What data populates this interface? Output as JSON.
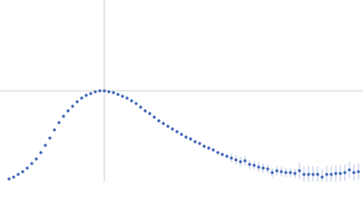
{
  "chart_data": {
    "type": "scatter",
    "xlim": [
      0,
      400
    ],
    "ylim": [
      0,
      200
    ],
    "xticks": [
      115
    ],
    "yticks": [
      100
    ],
    "grid": true,
    "x": [
      10,
      15,
      20,
      25,
      30,
      35,
      40,
      45,
      50,
      55,
      60,
      65,
      70,
      75,
      80,
      85,
      90,
      95,
      100,
      105,
      110,
      115,
      120,
      125,
      130,
      135,
      140,
      145,
      150,
      155,
      160,
      165,
      170,
      175,
      180,
      185,
      190,
      195,
      200,
      205,
      210,
      215,
      220,
      225,
      230,
      235,
      240,
      245,
      250,
      255,
      260,
      265,
      270,
      275,
      280,
      285,
      290,
      295,
      300,
      305,
      310,
      315,
      320,
      325,
      330,
      335,
      340,
      345,
      350,
      355,
      360,
      365,
      370,
      375,
      380,
      385,
      390,
      395
    ],
    "series": [
      {
        "color": "#3a62b5",
        "values": [
          3,
          5,
          8,
          11,
          15,
          20,
          25,
          32,
          40,
          48,
          57,
          65,
          72,
          78,
          83,
          88,
          92,
          95,
          97,
          99,
          100,
          100,
          99,
          98,
          96,
          94,
          92,
          89,
          86,
          82,
          78,
          75,
          71,
          67,
          64,
          61,
          58,
          55,
          52,
          49,
          47,
          44,
          42,
          39,
          37,
          35,
          32,
          30,
          28,
          26,
          24,
          22,
          23,
          19,
          18,
          16,
          15,
          14,
          10,
          12,
          11,
          10,
          10,
          9,
          12,
          8,
          8,
          8,
          8,
          5,
          8,
          8,
          9,
          9,
          10,
          13,
          10,
          11
        ],
        "errors": [
          1,
          1,
          1,
          1,
          1,
          1,
          1,
          1,
          1,
          1,
          1,
          1,
          1,
          1,
          1,
          1,
          1,
          1,
          1,
          1,
          1,
          1,
          1,
          1,
          1,
          1,
          1,
          1,
          1,
          2,
          2,
          2,
          2,
          2,
          2,
          2,
          2,
          2,
          2,
          2,
          2,
          2,
          2,
          2,
          2,
          2,
          2,
          2,
          2,
          5,
          5,
          5,
          5,
          5,
          5,
          5,
          5,
          5,
          5,
          5,
          5,
          5,
          5,
          5,
          9,
          9,
          9,
          9,
          9,
          9,
          9,
          9,
          9,
          9,
          9,
          9,
          9,
          9
        ]
      }
    ]
  }
}
